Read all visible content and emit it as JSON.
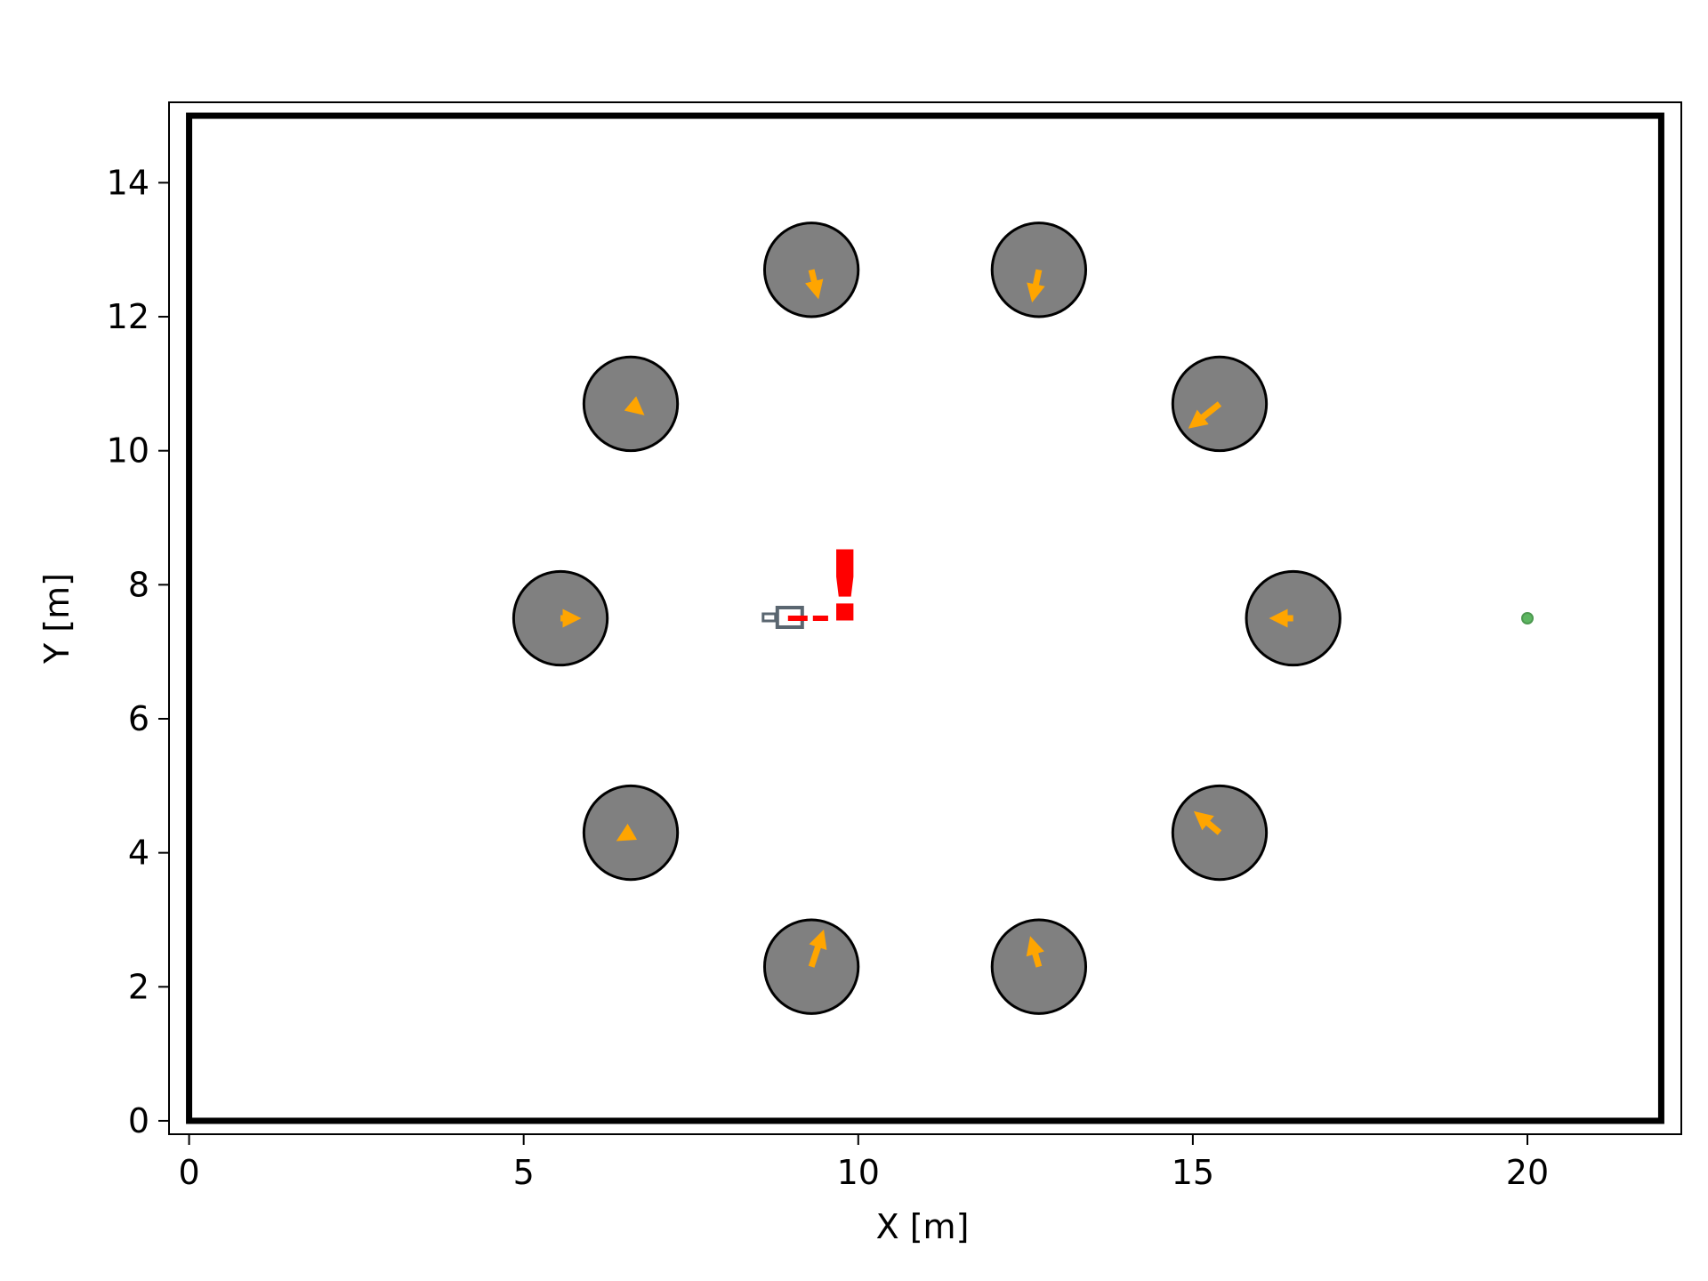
{
  "chart_data": {
    "type": "scatter",
    "xlabel": "X [m]",
    "ylabel": "Y [m]",
    "xlim": [
      -0.3,
      22.3
    ],
    "ylim": [
      -0.2,
      15.2
    ],
    "x_ticks": [
      0,
      5,
      10,
      15,
      20
    ],
    "y_ticks": [
      0,
      2,
      4,
      6,
      8,
      10,
      12,
      14
    ],
    "grid": false,
    "boundary": {
      "x": [
        0,
        22
      ],
      "y": [
        0,
        15
      ]
    },
    "obstacles": [
      {
        "x": 9.3,
        "y": 12.7,
        "radius": 0.7,
        "velocity": [
          0.08,
          -0.33
        ]
      },
      {
        "x": 12.7,
        "y": 12.7,
        "radius": 0.7,
        "velocity": [
          -0.08,
          -0.38
        ]
      },
      {
        "x": 6.6,
        "y": 10.7,
        "radius": 0.7,
        "velocity": [
          0.12,
          -0.1
        ]
      },
      {
        "x": 15.4,
        "y": 10.7,
        "radius": 0.7,
        "velocity": [
          -0.38,
          -0.3
        ]
      },
      {
        "x": 5.55,
        "y": 7.5,
        "radius": 0.7,
        "velocity": [
          0.2,
          0.0
        ]
      },
      {
        "x": 16.5,
        "y": 7.5,
        "radius": 0.7,
        "velocity": [
          -0.25,
          0.0
        ]
      },
      {
        "x": 6.6,
        "y": 4.3,
        "radius": 0.7,
        "velocity": [
          -0.12,
          -0.07
        ]
      },
      {
        "x": 15.4,
        "y": 4.3,
        "radius": 0.7,
        "velocity": [
          -0.3,
          0.25
        ]
      },
      {
        "x": 9.3,
        "y": 2.3,
        "radius": 0.7,
        "velocity": [
          0.15,
          0.45
        ]
      },
      {
        "x": 12.7,
        "y": 2.3,
        "radius": 0.7,
        "velocity": [
          -0.1,
          0.35
        ]
      }
    ],
    "agent": {
      "x": 8.95,
      "y": 7.5,
      "heading": [
        0.6,
        0.0
      ]
    },
    "goal": {
      "x": 20.0,
      "y": 7.5
    },
    "alert": {
      "text": "!",
      "x": 9.8,
      "y": 8.0
    },
    "colors": {
      "obstacle_fill": "#808080",
      "obstacle_edge": "#000000",
      "velocity_arrow": "#ffa500",
      "agent": "#5a6670",
      "heading": "#ff0000",
      "goal": "#4caf50",
      "alert": "#ff0000",
      "boundary": "#000000"
    }
  }
}
